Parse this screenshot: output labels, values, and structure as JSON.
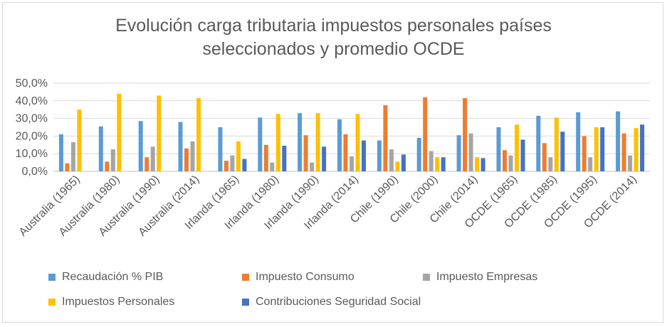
{
  "chart_data": {
    "type": "bar",
    "title": [
      "Evolución carga tributaria impuestos personales países",
      "seleccionados y promedio OCDE"
    ],
    "categories": [
      "Australia (1965)",
      "Australia (1980)",
      "Australia (1990)",
      "Australia (2014)",
      "Irlanda (1965)",
      "Irlanda (1980)",
      "Irlanda (1990)",
      "Irlanda (2014)",
      "Chile (1990)",
      "Chile (2000)",
      "Chile (2014)",
      "OCDE (1965)",
      "OCDE (1985)",
      "OCDE (1995)",
      "OCDE (2014)"
    ],
    "series": [
      {
        "name": "Recaudación % PIB",
        "color": "#5b9bd5",
        "values": [
          21,
          25.5,
          28.5,
          28,
          25,
          30.5,
          33,
          29.5,
          17.5,
          19,
          20.5,
          25,
          31.5,
          33.5,
          34
        ]
      },
      {
        "name": "Impuesto Consumo",
        "color": "#ed7d31",
        "values": [
          4.5,
          5.5,
          8,
          13,
          6,
          15,
          20.5,
          21,
          37.5,
          42,
          41.5,
          12,
          16,
          20,
          21.5
        ]
      },
      {
        "name": "Impuesto Empresas",
        "color": "#a5a5a5",
        "values": [
          16.5,
          12.5,
          14,
          17,
          9,
          5,
          5,
          8.5,
          12.5,
          11.5,
          21.5,
          9,
          8,
          8,
          9
        ]
      },
      {
        "name": "Impuestos Personales",
        "color": "#ffc000",
        "values": [
          35,
          44,
          43,
          41.5,
          17,
          32.5,
          33,
          32.5,
          5.5,
          8,
          8,
          26.5,
          30.5,
          25,
          24.5
        ]
      },
      {
        "name": "Contribuciones Seguridad Social",
        "color": "#4472c4",
        "values": [
          0,
          0,
          0,
          0,
          7,
          14.5,
          14,
          17.5,
          9.5,
          8,
          7.5,
          18,
          22.5,
          25,
          26.5
        ]
      }
    ],
    "yticks": [
      "0,0%",
      "10,0%",
      "20,0%",
      "30,0%",
      "40,0%",
      "50,0%"
    ],
    "ylim": [
      0,
      50
    ],
    "grid": true,
    "legend_position": "bottom"
  }
}
